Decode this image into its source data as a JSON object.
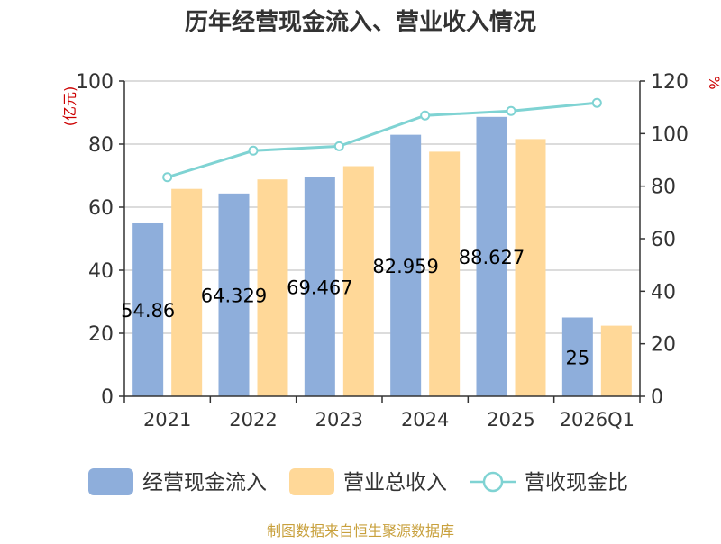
{
  "chart_data": {
    "type": "bar",
    "title": "历年经营现金流入、营业收入情况",
    "categories": [
      "2021",
      "2022",
      "2023",
      "2024",
      "2025",
      "2026Q1"
    ],
    "series": [
      {
        "name": "经营现金流入",
        "type": "bar",
        "axis": "left",
        "color": "#8eaedb",
        "values": [
          54.86,
          64.329,
          69.467,
          82.959,
          88.627,
          25
        ]
      },
      {
        "name": "营业总收入",
        "type": "bar",
        "axis": "left",
        "color": "#ffd898",
        "values": [
          65.8,
          68.8,
          73.0,
          77.6,
          81.6,
          22.4
        ]
      },
      {
        "name": "营收现金比",
        "type": "line",
        "axis": "right",
        "color": "#7fd3d3",
        "values": [
          83.4,
          93.5,
          95.2,
          106.9,
          108.6,
          111.7
        ]
      }
    ],
    "data_labels": [
      "54.86",
      "64.329",
      "69.467",
      "82.959",
      "88.627",
      "25"
    ],
    "y_left": {
      "label": "(亿元)",
      "ylim": [
        0,
        100
      ],
      "ticks": [
        "0",
        "20",
        "40",
        "60",
        "80",
        "100"
      ]
    },
    "y_right": {
      "label": "%",
      "ylim": [
        0,
        120
      ],
      "ticks": [
        "0",
        "20",
        "40",
        "60",
        "80",
        "100",
        "120"
      ]
    },
    "grid": true,
    "legend": "bottom",
    "source": "制图数据来自恒生聚源数据库"
  }
}
